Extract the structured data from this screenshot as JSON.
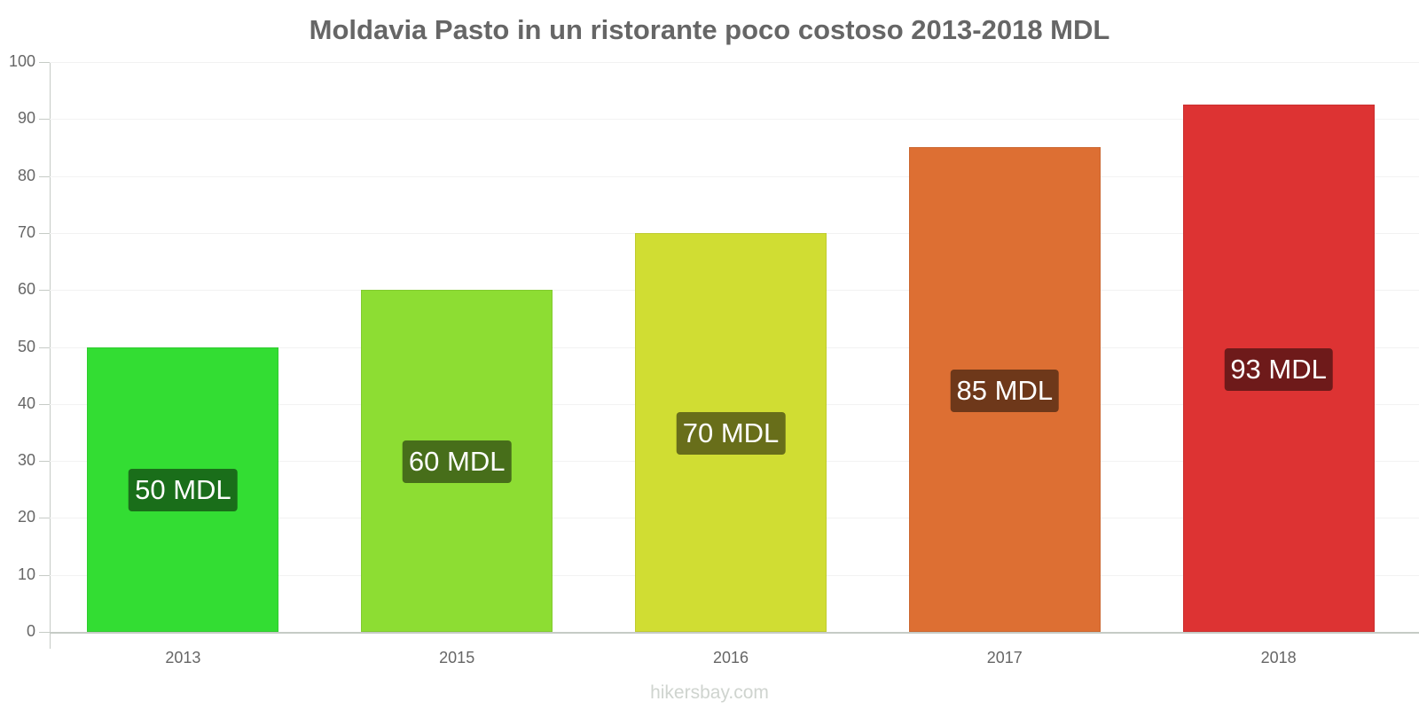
{
  "chart_data": {
    "type": "bar",
    "title": "Moldavia Pasto in un ristorante poco costoso 2013-2018 MDL",
    "xlabel": "",
    "ylabel": "",
    "ylim": [
      0,
      100
    ],
    "yticks": [
      0,
      10,
      20,
      30,
      40,
      50,
      60,
      70,
      80,
      90,
      100
    ],
    "grid": true,
    "legend": null,
    "categories": [
      "2013",
      "2015",
      "2016",
      "2017",
      "2018"
    ],
    "values": [
      50,
      60,
      70,
      85,
      92.5
    ],
    "labels": [
      "50 MDL",
      "60 MDL",
      "70 MDL",
      "85 MDL",
      "93 MDL"
    ],
    "colors": [
      "#33dd33",
      "#8ddd33",
      "#d0dd33",
      "#dd6f33",
      "#dd3333"
    ],
    "label_bg_colors": [
      "#1a6e1a",
      "#476e1a",
      "#686e1a",
      "#6e381a",
      "#6e1a1a"
    ]
  },
  "watermark": "hikersbay.com"
}
